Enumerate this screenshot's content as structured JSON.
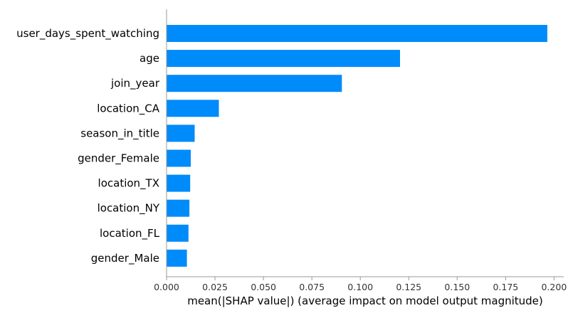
{
  "chart_data": {
    "type": "bar",
    "orientation": "horizontal",
    "title": "",
    "xlabel": "mean(|SHAP value|) (average impact on model output magnitude)",
    "ylabel": "",
    "xlim": [
      0,
      0.205
    ],
    "grid": false,
    "legend": "none",
    "bar_color": "#008bfb",
    "categories": [
      "user_days_spent_watching",
      "age",
      "join_year",
      "location_CA",
      "season_in_title",
      "gender_Female",
      "location_TX",
      "location_NY",
      "location_FL",
      "gender_Male"
    ],
    "values": [
      0.1965,
      0.1205,
      0.0905,
      0.027,
      0.0145,
      0.0125,
      0.0122,
      0.0118,
      0.0113,
      0.0105
    ],
    "xticks": [
      0.0,
      0.025,
      0.05,
      0.075,
      0.1,
      0.125,
      0.15,
      0.175,
      0.2
    ],
    "xtick_labels": [
      "0.000",
      "0.025",
      "0.050",
      "0.075",
      "0.100",
      "0.125",
      "0.150",
      "0.175",
      "0.200"
    ]
  }
}
